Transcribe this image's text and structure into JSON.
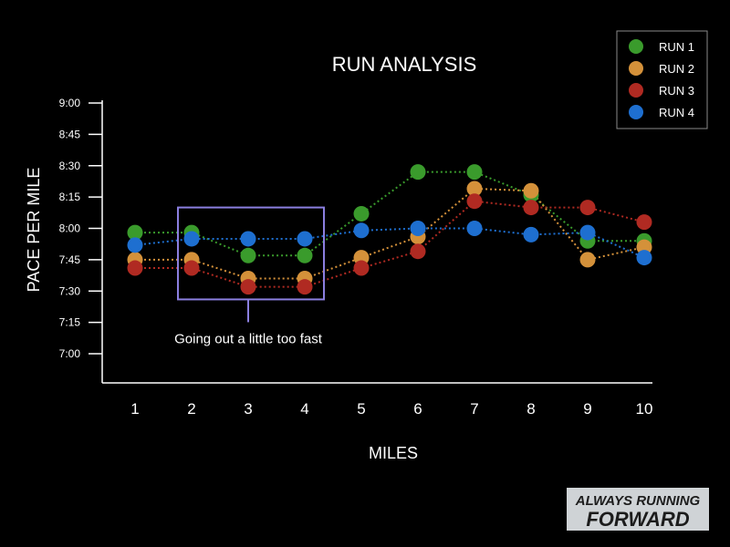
{
  "chart_data": {
    "type": "line",
    "title": "RUN ANALYSIS",
    "xlabel": "MILES",
    "ylabel": "PACE PER MILE",
    "x": [
      1,
      2,
      3,
      4,
      5,
      6,
      7,
      8,
      9,
      10
    ],
    "y_ticks": [
      "7:00",
      "7:15",
      "7:30",
      "7:45",
      "8:00",
      "8:15",
      "8:30",
      "8:45",
      "9:00"
    ],
    "y_unit": "seconds per mile",
    "ylim": [
      405,
      555
    ],
    "grid": false,
    "legend_position": "top-right",
    "series": [
      {
        "name": "RUN 1",
        "color": "#3a9b2c",
        "values": [
          478,
          478,
          467,
          467,
          487,
          507,
          507,
          496,
          474,
          474
        ]
      },
      {
        "name": "RUN 2",
        "color": "#d4913a",
        "values": [
          465,
          465,
          456,
          456,
          466,
          476,
          499,
          498,
          465,
          471
        ]
      },
      {
        "name": "RUN 3",
        "color": "#b02a22",
        "values": [
          461,
          461,
          452,
          452,
          461,
          469,
          493,
          490,
          490,
          483
        ]
      },
      {
        "name": "RUN 4",
        "color": "#1e6fd0",
        "values": [
          472,
          475,
          475,
          475,
          479,
          480,
          480,
          477,
          478,
          466
        ]
      }
    ],
    "annotation": {
      "text": "Going out a little too fast",
      "x_range": [
        2,
        4
      ]
    }
  },
  "branding": {
    "logo_line1": "ALWAYS RUNNING",
    "logo_line2": "FORWARD"
  }
}
